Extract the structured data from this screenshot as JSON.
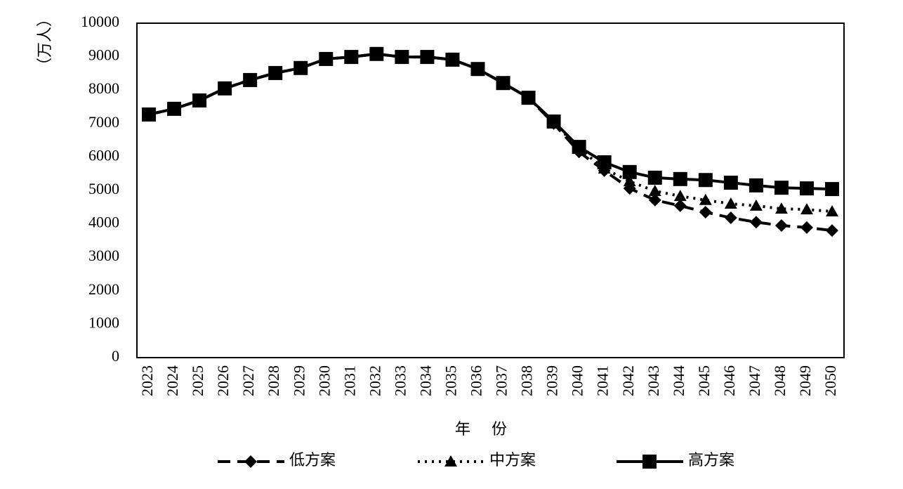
{
  "chart_data": {
    "type": "line",
    "y_label": "（万人）",
    "x_label": "年份",
    "categories": [
      "2023",
      "2024",
      "2025",
      "2026",
      "2027",
      "2028",
      "2029",
      "2030",
      "2031",
      "2032",
      "2033",
      "2034",
      "2035",
      "2036",
      "2037",
      "2038",
      "2039",
      "2040",
      "2041",
      "2042",
      "2043",
      "2044",
      "2045",
      "2046",
      "2047",
      "2048",
      "2049",
      "2050"
    ],
    "series": [
      {
        "name": "低方案",
        "color": "#000000",
        "dash": "dashed",
        "marker": "diamond",
        "values": [
          7270,
          7440,
          7690,
          8050,
          8300,
          8510,
          8660,
          8930,
          8990,
          9080,
          8990,
          8990,
          8910,
          8630,
          8210,
          7770,
          7000,
          6150,
          5590,
          5060,
          4710,
          4540,
          4350,
          4180,
          4050,
          3950,
          3890,
          3800
        ]
      },
      {
        "name": "中方案",
        "color": "#000000",
        "dash": "dotted",
        "marker": "triangle",
        "values": [
          7270,
          7440,
          7690,
          8050,
          8300,
          8510,
          8660,
          8930,
          8990,
          9080,
          8990,
          8990,
          8910,
          8630,
          8210,
          7770,
          7030,
          6250,
          5650,
          5270,
          4980,
          4830,
          4710,
          4600,
          4540,
          4450,
          4430,
          4370
        ]
      },
      {
        "name": "高方案",
        "color": "#000000",
        "dash": "solid",
        "marker": "square",
        "values": [
          7270,
          7440,
          7690,
          8050,
          8300,
          8510,
          8660,
          8930,
          8990,
          9080,
          8990,
          8990,
          8910,
          8630,
          8210,
          7770,
          7060,
          6300,
          5840,
          5550,
          5380,
          5340,
          5310,
          5230,
          5150,
          5080,
          5060,
          5040
        ]
      }
    ],
    "ylim": [
      0,
      10000
    ],
    "yticks": [
      0,
      1000,
      2000,
      3000,
      4000,
      5000,
      6000,
      7000,
      8000,
      9000,
      10000
    ],
    "grid": false,
    "legend": "bottom"
  }
}
